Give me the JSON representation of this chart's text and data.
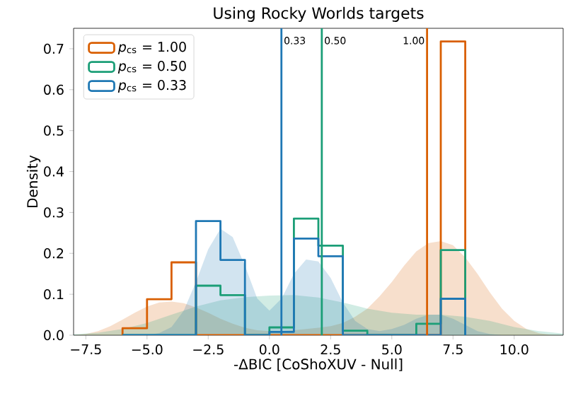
{
  "chart_data": {
    "type": "histogram",
    "title": "Using Rocky Worlds targets",
    "xlabel": "-ΔBIC [CoShoXUV - Null]",
    "ylabel": "Density",
    "bins": [
      -6,
      -5,
      -4,
      -3,
      -2,
      -1,
      0,
      1,
      2,
      3,
      4,
      5,
      6,
      7,
      8
    ],
    "series": [
      {
        "type": "area",
        "color": "#d95f02",
        "x": [
          -8,
          -7.5,
          -7,
          -6.5,
          -6,
          -5.5,
          -5,
          -4.5,
          -4,
          -3.5,
          -3,
          -2.5,
          -2,
          -1.5,
          -1,
          -0.5,
          0,
          0.5,
          1,
          1.5,
          2,
          2.5,
          3,
          3.5,
          4,
          4.5,
          5,
          5.5,
          6,
          6.5,
          7,
          7.5,
          8,
          8.5,
          9,
          9.5,
          10,
          10.5,
          11,
          11.5,
          12
        ],
        "values": [
          0,
          0.003,
          0.01,
          0.022,
          0.038,
          0.055,
          0.07,
          0.08,
          0.082,
          0.078,
          0.068,
          0.055,
          0.04,
          0.028,
          0.018,
          0.012,
          0.01,
          0.01,
          0.012,
          0.015,
          0.018,
          0.022,
          0.03,
          0.045,
          0.065,
          0.095,
          0.13,
          0.17,
          0.205,
          0.225,
          0.23,
          0.22,
          0.19,
          0.15,
          0.105,
          0.065,
          0.035,
          0.015,
          0.005,
          0.001,
          0
        ]
      },
      {
        "type": "area",
        "color": "#1b9e77",
        "x": [
          -8,
          -7,
          -6,
          -5,
          -4,
          -3,
          -2,
          -1,
          0,
          1,
          2,
          3,
          4,
          5,
          6,
          7,
          8,
          9,
          10,
          11,
          12
        ],
        "values": [
          0.002,
          0.006,
          0.015,
          0.03,
          0.05,
          0.07,
          0.085,
          0.093,
          0.097,
          0.098,
          0.092,
          0.08,
          0.065,
          0.055,
          0.05,
          0.05,
          0.045,
          0.035,
          0.02,
          0.01,
          0.004
        ]
      },
      {
        "type": "area",
        "color": "#1f78b4",
        "x": [
          -5,
          -4.5,
          -4,
          -3.5,
          -3,
          -2.5,
          -2,
          -1.5,
          -1,
          -0.5,
          0,
          0.5,
          1,
          1.5,
          2,
          2.5,
          3,
          3.5,
          4,
          4.5,
          5,
          5.5,
          6,
          6.5,
          7,
          7.5,
          8,
          8.5,
          9,
          9.5
        ],
        "values": [
          0,
          0.005,
          0.02,
          0.06,
          0.13,
          0.21,
          0.26,
          0.24,
          0.17,
          0.09,
          0.06,
          0.09,
          0.15,
          0.185,
          0.18,
          0.14,
          0.08,
          0.035,
          0.015,
          0.01,
          0.015,
          0.025,
          0.04,
          0.05,
          0.05,
          0.04,
          0.025,
          0.01,
          0.003,
          0
        ]
      },
      {
        "name": "*p*$_{cs}$ = 1.00",
        "color": "#d95f02",
        "values": [
          0.017,
          0.088,
          0.178,
          0,
          0,
          0,
          0,
          0,
          0,
          0,
          0,
          0,
          0,
          0.718
        ]
      },
      {
        "name": "*p*$_{cs}$ = 0.50",
        "color": "#1b9e77",
        "values": [
          0,
          0,
          0,
          0.121,
          0.098,
          0,
          0.019,
          0.285,
          0.219,
          0.011,
          0,
          0,
          0.028,
          0.208
        ]
      },
      {
        "name": "*p*$_{cs}$ = 0.33",
        "color": "#1f78b4",
        "values": [
          0,
          0,
          0,
          0.279,
          0.184,
          0,
          0.008,
          0.236,
          0.193,
          0,
          0,
          0,
          0,
          0.089
        ]
      }
    ],
    "ref_lines": [
      {
        "axis": "x",
        "value": 0.49,
        "color": "#1f78b4"
      },
      {
        "axis": "x",
        "value": 2.14,
        "color": "#1b9e77"
      },
      {
        "axis": "x",
        "value": 6.44,
        "color": "#d95f02"
      }
    ],
    "annotations": [
      {
        "text": "0.33",
        "x": 0.49,
        "y": 0.72
      },
      {
        "text": "0.50",
        "x": 2.14,
        "y": 0.72
      },
      {
        "text": "1.00",
        "x": 6.44,
        "y": 0.72
      }
    ],
    "xlim": [
      -8,
      12
    ],
    "ylim": [
      0,
      0.75
    ],
    "xticks": [
      {
        "value": -7.5,
        "label": "−7.5"
      },
      {
        "value": -5,
        "label": "−5.0"
      },
      {
        "value": -2.5,
        "label": "−2.5"
      },
      {
        "value": 0,
        "label": "0.0"
      },
      {
        "value": 2.5,
        "label": "2.5"
      },
      {
        "value": 5,
        "label": "5.0"
      },
      {
        "value": 7.5,
        "label": "7.5"
      },
      {
        "value": 10,
        "label": "10.0"
      }
    ],
    "yticks": [
      {
        "value": 0,
        "label": "0.0"
      },
      {
        "value": 0.1,
        "label": "0.1"
      },
      {
        "value": 0.2,
        "label": "0.2"
      },
      {
        "value": 0.3,
        "label": "0.3"
      },
      {
        "value": 0.4,
        "label": "0.4"
      },
      {
        "value": 0.5,
        "label": "0.5"
      },
      {
        "value": 0.6,
        "label": "0.6"
      },
      {
        "value": 0.7,
        "label": "0.7"
      }
    ],
    "legend": "top left"
  }
}
